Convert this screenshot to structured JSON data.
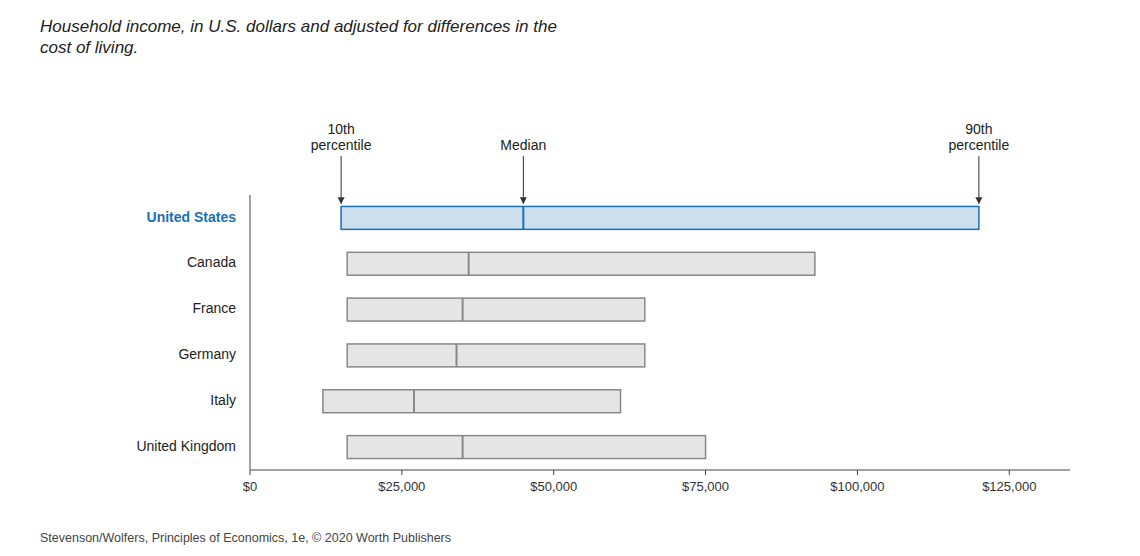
{
  "chart_data": {
    "type": "range_bar",
    "orientation": "horizontal",
    "title": "Household income, in U.S. dollars and adjusted for differences in the\ncost of living.",
    "caption": "Stevenson/Wolfers, Principles of Economics, 1e, © 2020 Worth Publishers",
    "categories": [
      "United States",
      "Canada",
      "France",
      "Germany",
      "Italy",
      "United Kingdom"
    ],
    "p10": [
      15000,
      16000,
      16000,
      16000,
      12000,
      16000
    ],
    "median": [
      45000,
      36000,
      35000,
      34000,
      27000,
      35000
    ],
    "p90": [
      120000,
      93000,
      65000,
      65000,
      61000,
      75000
    ],
    "colors": [
      "#1a6fb5",
      "#888888",
      "#888888",
      "#888888",
      "#888888",
      "#888888"
    ],
    "annotations": [
      {
        "text": "10th\npercentile",
        "x": 15000
      },
      {
        "text": "Median",
        "x": 45000
      },
      {
        "text": "90th\npercentile",
        "x": 120000
      }
    ],
    "xlim": [
      0,
      135000
    ],
    "xticks": [
      {
        "value": 0,
        "label": "$0"
      },
      {
        "value": 25000,
        "label": "$25,000"
      },
      {
        "value": 50000,
        "label": "$50,000"
      },
      {
        "value": 75000,
        "label": "$75,000"
      },
      {
        "value": 100000,
        "label": "$100,000"
      },
      {
        "value": 125000,
        "label": "$125,000"
      }
    ],
    "grid": false
  }
}
